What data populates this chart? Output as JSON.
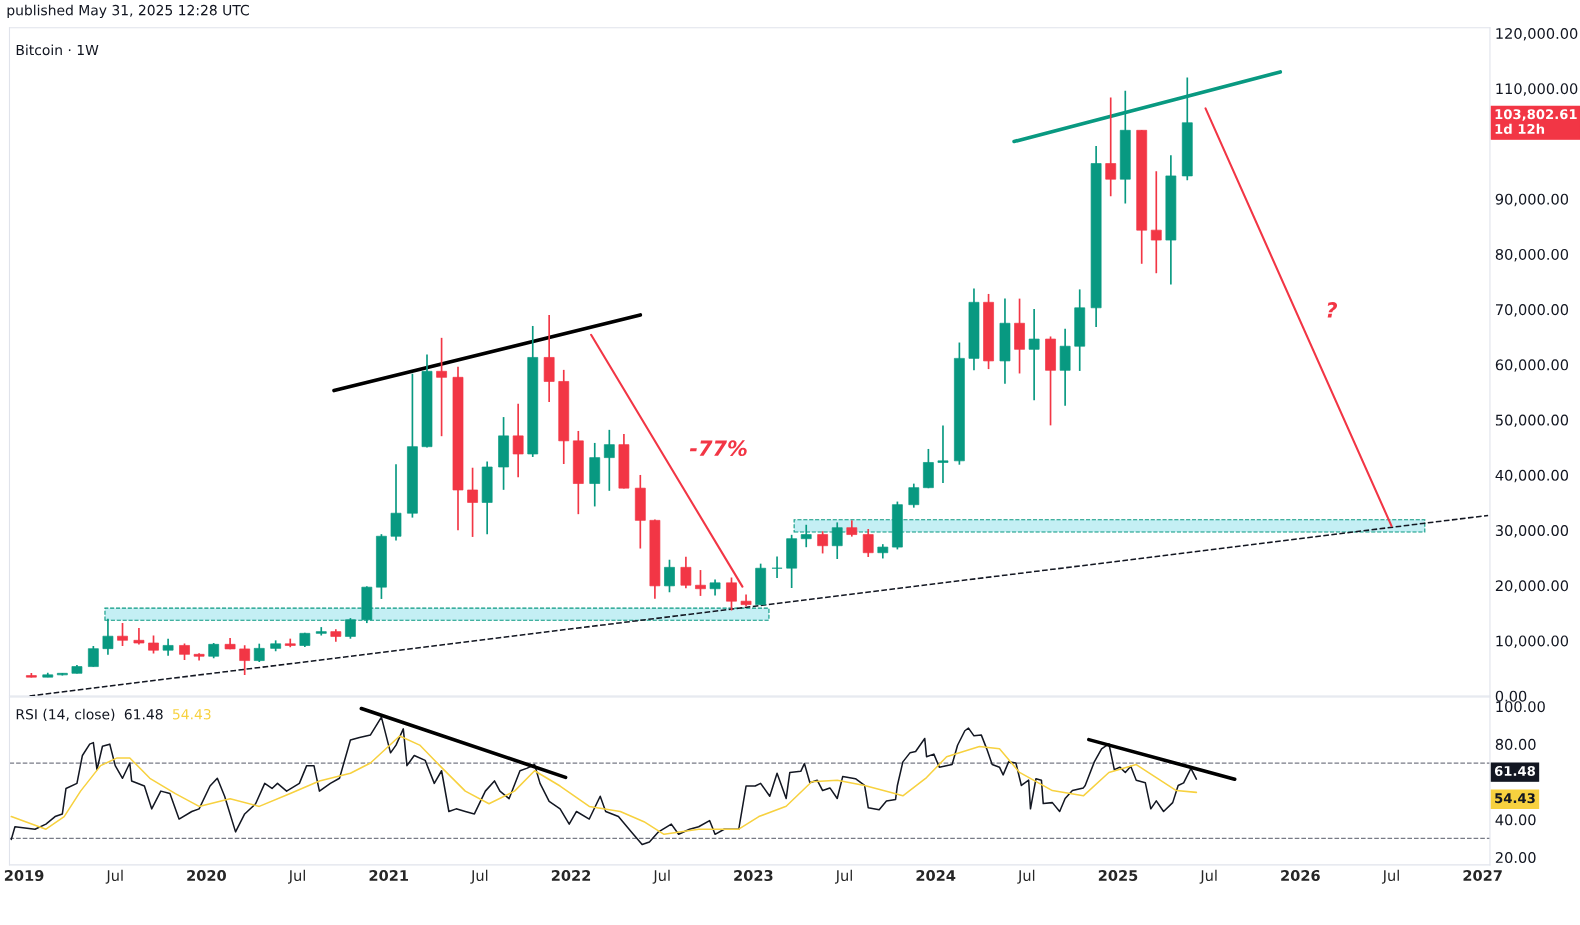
{
  "chart_data": [
    {
      "type": "candlestick",
      "title": "Bitcoin · 1W",
      "subtitle": "published May 31, 2025 12:28 UTC",
      "x": [
        2019.04,
        2019.13,
        2019.21,
        2019.29,
        2019.38,
        2019.46,
        2019.54,
        2019.63,
        2019.71,
        2019.79,
        2019.88,
        2019.96,
        2020.04,
        2020.13,
        2020.21,
        2020.29,
        2020.38,
        2020.46,
        2020.54,
        2020.63,
        2020.71,
        2020.79,
        2020.88,
        2020.96,
        2021.04,
        2021.13,
        2021.21,
        2021.29,
        2021.38,
        2021.46,
        2021.54,
        2021.63,
        2021.71,
        2021.79,
        2021.88,
        2021.96,
        2022.04,
        2022.13,
        2022.21,
        2022.29,
        2022.38,
        2022.46,
        2022.54,
        2022.63,
        2022.71,
        2022.79,
        2022.88,
        2022.96,
        2023.04,
        2023.13,
        2023.21,
        2023.29,
        2023.38,
        2023.46,
        2023.54,
        2023.63,
        2023.71,
        2023.79,
        2023.88,
        2023.96,
        2024.04,
        2024.13,
        2024.21,
        2024.29,
        2024.38,
        2024.46,
        2024.54,
        2024.63,
        2024.71,
        2024.79,
        2024.88,
        2024.96,
        2025.04,
        2025.13,
        2025.21,
        2025.29,
        2025.38
      ],
      "ohlc": [
        [
          3690,
          4140,
          3350,
          3410
        ],
        [
          3410,
          4200,
          3380,
          3820
        ],
        [
          3820,
          4140,
          3700,
          4100
        ],
        [
          4100,
          5600,
          4050,
          5320
        ],
        [
          5320,
          9070,
          5300,
          8570
        ],
        [
          8570,
          13970,
          7450,
          10820
        ],
        [
          10820,
          13200,
          9070,
          10080
        ],
        [
          10080,
          12330,
          9320,
          9590
        ],
        [
          9590,
          10950,
          7710,
          8290
        ],
        [
          8290,
          10370,
          7300,
          9150
        ],
        [
          9150,
          9500,
          6520,
          7540
        ],
        [
          7540,
          7750,
          6430,
          7190
        ],
        [
          7190,
          9580,
          6850,
          9350
        ],
        [
          9350,
          10500,
          8450,
          8520
        ],
        [
          8520,
          9190,
          3780,
          6410
        ],
        [
          6410,
          9470,
          6150,
          8620
        ],
        [
          8620,
          10070,
          8100,
          9450
        ],
        [
          9450,
          10380,
          8830,
          9140
        ],
        [
          9140,
          11450,
          8890,
          11340
        ],
        [
          11340,
          12470,
          10950,
          11650
        ],
        [
          11650,
          12060,
          9820,
          10780
        ],
        [
          10780,
          14100,
          10370,
          13800
        ],
        [
          13800,
          19860,
          13200,
          19700
        ],
        [
          19700,
          29300,
          17570,
          28920
        ],
        [
          28920,
          41950,
          28130,
          33090
        ],
        [
          33090,
          58350,
          32300,
          45140
        ],
        [
          45140,
          61840,
          45000,
          58790
        ],
        [
          58790,
          64850,
          47040,
          57700
        ],
        [
          57700,
          59600,
          30000,
          37300
        ],
        [
          37300,
          41330,
          28800,
          35040
        ],
        [
          35040,
          42450,
          29280,
          41460
        ],
        [
          41460,
          50500,
          37330,
          47100
        ],
        [
          47100,
          52920,
          39600,
          43820
        ],
        [
          43820,
          67000,
          43280,
          61300
        ],
        [
          61300,
          69000,
          53250,
          56950
        ],
        [
          56950,
          59050,
          42000,
          46200
        ],
        [
          46200,
          47990,
          32920,
          38470
        ],
        [
          38470,
          45820,
          34320,
          43160
        ],
        [
          43160,
          48190,
          37150,
          45510
        ],
        [
          45510,
          47440,
          37580,
          37630
        ],
        [
          37630,
          40020,
          26700,
          31800
        ],
        [
          31800,
          31960,
          17620,
          19940
        ],
        [
          19940,
          24670,
          18780,
          23290
        ],
        [
          23290,
          25210,
          19520,
          20050
        ],
        [
          20050,
          22800,
          18120,
          19420
        ],
        [
          19420,
          21090,
          18190,
          20490
        ],
        [
          20490,
          21450,
          15480,
          17160
        ],
        [
          17160,
          18390,
          16260,
          16540
        ],
        [
          16540,
          23960,
          16500,
          23130
        ],
        [
          23130,
          25250,
          21350,
          23140
        ],
        [
          23140,
          29180,
          19550,
          28480
        ],
        [
          28480,
          31000,
          26940,
          29230
        ],
        [
          29230,
          29820,
          25810,
          27210
        ],
        [
          27210,
          31430,
          24800,
          30470
        ],
        [
          30470,
          31800,
          28860,
          29230
        ],
        [
          29230,
          30230,
          25170,
          25940
        ],
        [
          25940,
          27490,
          24900,
          26960
        ],
        [
          26960,
          35200,
          26540,
          34640
        ],
        [
          34640,
          38450,
          34100,
          37720
        ],
        [
          37720,
          44730,
          37620,
          42280
        ],
        [
          42280,
          48970,
          38550,
          42580
        ],
        [
          42580,
          64000,
          41880,
          61130
        ],
        [
          61130,
          73780,
          59000,
          71280
        ],
        [
          71280,
          72800,
          59190,
          60670
        ],
        [
          60670,
          71980,
          56550,
          67490
        ],
        [
          67490,
          71950,
          58400,
          62770
        ],
        [
          62770,
          70080,
          53550,
          64630
        ],
        [
          64630,
          65100,
          49000,
          58970
        ],
        [
          58970,
          66500,
          52550,
          63330
        ],
        [
          63330,
          73620,
          58860,
          70290
        ],
        [
          70290,
          99590,
          66830,
          96410
        ],
        [
          96410,
          108350,
          90500,
          93580
        ],
        [
          93580,
          109590,
          89160,
          102430
        ],
        [
          102430,
          102500,
          78260,
          84350
        ],
        [
          84350,
          95000,
          76550,
          82550
        ],
        [
          82550,
          97900,
          74500,
          94170
        ],
        [
          94170,
          111980,
          93380,
          103800
        ]
      ],
      "colors": [
        "#f23645",
        "#089981",
        "#089981",
        "#089981",
        "#089981",
        "#089981",
        "#f23645",
        "#f23645",
        "#f23645",
        "#089981",
        "#f23645",
        "#f23645",
        "#089981",
        "#f23645",
        "#f23645",
        "#089981",
        "#089981",
        "#f23645",
        "#089981",
        "#089981",
        "#f23645",
        "#089981",
        "#089981",
        "#089981",
        "#089981",
        "#089981",
        "#089981",
        "#f23645",
        "#f23645",
        "#f23645",
        "#089981",
        "#089981",
        "#f23645",
        "#089981",
        "#f23645",
        "#f23645",
        "#f23645",
        "#089981",
        "#089981",
        "#f23645",
        "#f23645",
        "#f23645",
        "#089981",
        "#f23645",
        "#f23645",
        "#089981",
        "#f23645",
        "#f23645",
        "#089981",
        "#089981",
        "#089981",
        "#089981",
        "#f23645",
        "#089981",
        "#f23645",
        "#f23645",
        "#089981",
        "#089981",
        "#089981",
        "#089981",
        "#089981",
        "#089981",
        "#089981",
        "#f23645",
        "#089981",
        "#f23645",
        "#089981",
        "#f23645",
        "#089981",
        "#089981",
        "#089981",
        "#f23645",
        "#089981",
        "#f23645",
        "#f23645",
        "#089981",
        "#089981"
      ],
      "series": [
        {
          "type": "line",
          "x": [
            2019.03,
            2027.03
          ],
          "values": [
            0,
            32700
          ],
          "color": "#131722",
          "line_style": "dashed"
        },
        {
          "type": "line",
          "x": [
            2020.7,
            2022.38
          ],
          "values": [
            55300,
            69000
          ],
          "color": "#000000",
          "line_style": "solid"
        },
        {
          "type": "line",
          "x": [
            2024.43,
            2025.89
          ],
          "values": [
            100400,
            113000
          ],
          "color": "#089981",
          "line_style": "solid"
        },
        {
          "type": "line",
          "x": [
            2022.11,
            2022.94
          ],
          "values": [
            65400,
            19800
          ],
          "color": "#f23645",
          "line_style": "solid"
        },
        {
          "type": "line",
          "x": [
            2025.48,
            2026.5
          ],
          "values": [
            106400,
            30800
          ],
          "color": "#f23645",
          "line_style": "solid"
        }
      ],
      "bands": [
        {
          "axis": "y",
          "from": 13700,
          "to": 15900,
          "color": "#c4eff4"
        },
        {
          "axis": "y",
          "from": 29700,
          "to": 31900,
          "color": "#c4eff4"
        }
      ],
      "annotations": [
        "-77%",
        "?",
        "103,802.61\n1d 12h"
      ],
      "xlim": [
        2018.92,
        2027.04
      ],
      "ylim": [
        0,
        121000
      ],
      "yticks": [
        {
          "value": 0,
          "label": "0.00"
        },
        {
          "value": 10000,
          "label": "10,000.00"
        },
        {
          "value": 20000,
          "label": "20,000.00"
        },
        {
          "value": 30000,
          "label": "30,000.00"
        },
        {
          "value": 40000,
          "label": "40,000.00"
        },
        {
          "value": 50000,
          "label": "50,000.00"
        },
        {
          "value": 60000,
          "label": "60,000.00"
        },
        {
          "value": 70000,
          "label": "70,000.00"
        },
        {
          "value": 80000,
          "label": "80,000.00"
        },
        {
          "value": 90000,
          "label": "90,000.00"
        },
        {
          "value": 110000,
          "label": "110,000.00"
        },
        {
          "value": 120000,
          "label": "120,000.00"
        }
      ],
      "tick_labels": "y",
      "grid": false,
      "legend": false
    },
    {
      "type": "line",
      "title": "RSI (14, close)",
      "series": [
        {
          "type": "line",
          "color": "#131722",
          "x": [
            2018.93,
            2018.95,
            2019.06,
            2019.12,
            2019.17,
            2019.21,
            2019.23,
            2019.29,
            2019.32,
            2019.36,
            2019.38,
            2019.4,
            2019.43,
            2019.47,
            2019.5,
            2019.54,
            2019.58,
            2019.59,
            2019.66,
            2019.7,
            2019.75,
            2019.8,
            2019.85,
            2019.92,
            2019.96,
            2020.02,
            2020.06,
            2020.1,
            2020.16,
            2020.21,
            2020.27,
            2020.32,
            2020.36,
            2020.39,
            2020.44,
            2020.51,
            2020.55,
            2020.59,
            2020.62,
            2020.68,
            2020.73,
            2020.79,
            2020.84,
            2020.9,
            2020.96,
            2021.01,
            2021.04,
            2021.08,
            2021.1,
            2021.14,
            2021.2,
            2021.25,
            2021.29,
            2021.33,
            2021.37,
            2021.42,
            2021.47,
            2021.53,
            2021.58,
            2021.61,
            2021.66,
            2021.72,
            2021.76,
            2021.8,
            2021.83,
            2021.88,
            2021.94,
            2021.99,
            2022.03,
            2022.1,
            2022.16,
            2022.19,
            2022.26,
            2022.33,
            2022.39,
            2022.43,
            2022.48,
            2022.55,
            2022.59,
            2022.65,
            2022.7,
            2022.76,
            2022.79,
            2022.84,
            2022.92,
            2022.96,
            2023.01,
            2023.04,
            2023.09,
            2023.13,
            2023.18,
            2023.2,
            2023.26,
            2023.28,
            2023.31,
            2023.35,
            2023.38,
            2023.42,
            2023.46,
            2023.49,
            2023.56,
            2023.61,
            2023.63,
            2023.69,
            2023.73,
            2023.78,
            2023.79,
            2023.82,
            2023.86,
            2023.89,
            2023.94,
            2023.95,
            2023.99,
            2024.02,
            2024.09,
            2024.12,
            2024.16,
            2024.18,
            2024.21,
            2024.25,
            2024.28,
            2024.31,
            2024.35,
            2024.37,
            2024.4,
            2024.44,
            2024.47,
            2024.51,
            2024.52,
            2024.55,
            2024.58,
            2024.59,
            2024.64,
            2024.68,
            2024.71,
            2024.75,
            2024.81,
            2024.82,
            2024.87,
            2024.91,
            2024.95,
            2024.98,
            2025.01,
            2025.04,
            2025.07,
            2025.1,
            2025.15,
            2025.18,
            2025.21,
            2025.25,
            2025.3,
            2025.33,
            2025.36,
            2025.4,
            2025.43
          ],
          "values": [
            29.5,
            36.2,
            34.9,
            37.6,
            41.6,
            43,
            56.5,
            59.2,
            74,
            80,
            80.8,
            66.5,
            78.9,
            80,
            68.6,
            61.9,
            70,
            60.5,
            57.8,
            45.7,
            55.1,
            53.8,
            40.3,
            44.3,
            45.7,
            57.8,
            61.9,
            52.4,
            33.5,
            43,
            48.4,
            59.2,
            56.5,
            59.2,
            55.1,
            59.2,
            68.6,
            68.6,
            55.1,
            59.2,
            61.9,
            82.2,
            83.5,
            84.9,
            94.3,
            75.4,
            79.5,
            88.1,
            68.6,
            74,
            71.4,
            59.2,
            65.9,
            44.3,
            45.7,
            44.3,
            43,
            55.1,
            60.5,
            55.1,
            51.1,
            65.9,
            67.3,
            69.2,
            59.2,
            49.7,
            45.7,
            37.6,
            44.3,
            40.3,
            52.4,
            44.3,
            41.6,
            33.5,
            26.8,
            28.1,
            33.5,
            37.6,
            32.2,
            34.9,
            36.2,
            39.5,
            32.2,
            34.9,
            34.9,
            57.8,
            57.8,
            59.2,
            52.4,
            64.6,
            51.2,
            65,
            65.6,
            69.7,
            59.5,
            60.9,
            55.4,
            56.8,
            51.2,
            62.8,
            61.7,
            58.1,
            46.3,
            45.2,
            49.9,
            50.7,
            58.1,
            70.6,
            75.5,
            76.1,
            83,
            73.3,
            74.7,
            67.8,
            69.2,
            79.4,
            87.1,
            88.5,
            84.4,
            84.9,
            77.5,
            69.2,
            67.8,
            63.7,
            70.6,
            70,
            58.1,
            60.9,
            45.7,
            61.7,
            60.9,
            48.5,
            49,
            44.3,
            51.2,
            55.4,
            56.8,
            58.1,
            70.6,
            77.5,
            80.2,
            66.4,
            67.8,
            65,
            68.3,
            60.9,
            59.5,
            45.7,
            49.9,
            44.3,
            49,
            58.1,
            59.5,
            67.2,
            61.48
          ]
        },
        {
          "type": "line",
          "color": "#f7d13f",
          "x": [
            2018.93,
            2019.12,
            2019.22,
            2019.31,
            2019.42,
            2019.51,
            2019.58,
            2019.69,
            2019.83,
            2019.96,
            2020.13,
            2020.29,
            2020.46,
            2020.62,
            2020.79,
            2020.9,
            2021.06,
            2021.17,
            2021.28,
            2021.42,
            2021.55,
            2021.69,
            2021.8,
            2021.94,
            2022.1,
            2022.27,
            2022.4,
            2022.51,
            2022.7,
            2022.92,
            2023.03,
            2023.18,
            2023.32,
            2023.46,
            2023.61,
            2023.75,
            2023.82,
            2023.95,
            2024.06,
            2024.24,
            2024.35,
            2024.46,
            2024.64,
            2024.81,
            2024.95,
            2025.1,
            2025.21,
            2025.32,
            2025.43
          ],
          "values": [
            41.6,
            34.9,
            41.6,
            55.1,
            68.6,
            72.7,
            72.7,
            61.9,
            53.8,
            47,
            51.1,
            47,
            53.8,
            60.5,
            64.6,
            70,
            84.3,
            79.5,
            68.6,
            55.1,
            48.4,
            55.1,
            65.9,
            57.8,
            47,
            44.3,
            38.9,
            32.2,
            34.9,
            34.9,
            41.6,
            47.1,
            60.1,
            60.9,
            58.1,
            54.5,
            52.6,
            62.3,
            73.3,
            78.8,
            77.5,
            65,
            55.4,
            52.6,
            65,
            69.2,
            62.3,
            55.4,
            54.43
          ]
        },
        {
          "type": "line",
          "color": "#000000",
          "x": [
            2020.85,
            2021.97
          ],
          "values": [
            98.9,
            62.4
          ],
          "line_style": "solid"
        },
        {
          "type": "line",
          "color": "#000000",
          "x": [
            2024.84,
            2025.64
          ],
          "values": [
            82.4,
            61.4
          ],
          "line_style": "solid"
        }
      ],
      "ref_lines": [
        {
          "axis": "y",
          "value": 70,
          "color": "#787b86",
          "line_style": "dashed"
        },
        {
          "axis": "y",
          "value": 30,
          "color": "#787b86",
          "line_style": "dashed"
        }
      ],
      "annotations": [
        "61.48",
        "54.43",
        "61.48",
        "54.43"
      ],
      "xlim": [
        2018.92,
        2027.04
      ],
      "ylim": [
        16,
        105
      ],
      "xticks": [
        {
          "value": 2019,
          "label": "2019"
        },
        {
          "value": 2019.5,
          "label": "Jul"
        },
        {
          "value": 2020,
          "label": "2020"
        },
        {
          "value": 2020.5,
          "label": "Jul"
        },
        {
          "value": 2021,
          "label": "2021"
        },
        {
          "value": 2021.5,
          "label": "Jul"
        },
        {
          "value": 2022,
          "label": "2022"
        },
        {
          "value": 2022.5,
          "label": "Jul"
        },
        {
          "value": 2023,
          "label": "2023"
        },
        {
          "value": 2023.5,
          "label": "Jul"
        },
        {
          "value": 2024,
          "label": "2024"
        },
        {
          "value": 2024.5,
          "label": "Jul"
        },
        {
          "value": 2025,
          "label": "2025"
        },
        {
          "value": 2025.5,
          "label": "Jul"
        },
        {
          "value": 2026,
          "label": "2026"
        },
        {
          "value": 2026.5,
          "label": "Jul"
        },
        {
          "value": 2027,
          "label": "2027"
        }
      ],
      "yticks": [
        {
          "value": 20,
          "label": "20.00"
        },
        {
          "value": 40,
          "label": "40.00"
        },
        {
          "value": 80,
          "label": "80.00"
        },
        {
          "value": 100,
          "label": "100.00"
        }
      ],
      "grid": false,
      "legend": false
    }
  ]
}
